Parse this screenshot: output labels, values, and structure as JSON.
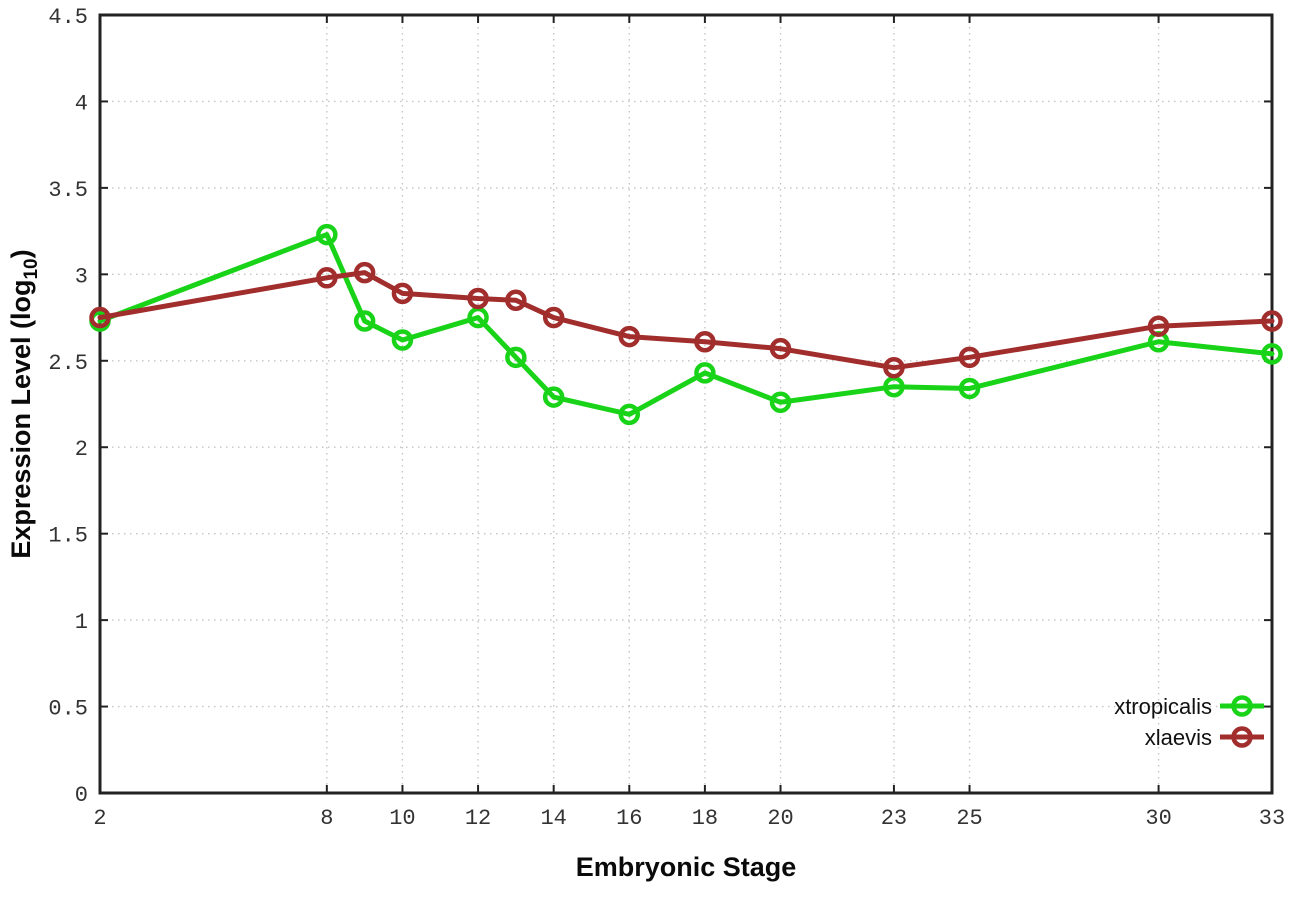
{
  "chart_data": {
    "type": "line",
    "title": "",
    "xlabel": "Embryonic Stage",
    "ylabel_main": "Expression Level (log",
    "ylabel_sub": "10",
    "ylabel_close": ")",
    "x": [
      2,
      8,
      9,
      10,
      12,
      13,
      14,
      16,
      18,
      20,
      23,
      25,
      30,
      33
    ],
    "series": [
      {
        "name": "xtropicalis",
        "color": "#19d319",
        "values": [
          2.73,
          3.23,
          2.73,
          2.62,
          2.75,
          2.52,
          2.29,
          2.19,
          2.43,
          2.26,
          2.35,
          2.34,
          2.61,
          2.54
        ]
      },
      {
        "name": "xlaevis",
        "color": "#a12d2d",
        "values": [
          2.75,
          2.98,
          3.01,
          2.89,
          2.86,
          2.85,
          2.75,
          2.64,
          2.61,
          2.57,
          2.46,
          2.52,
          2.7,
          2.73
        ]
      }
    ],
    "xlim": [
      2,
      33
    ],
    "ylim": [
      0,
      4.5
    ],
    "xticks": [
      2,
      8,
      10,
      12,
      14,
      16,
      18,
      20,
      23,
      25,
      30,
      33
    ],
    "xtick_labels": [
      "2",
      "8",
      "10",
      "12",
      "14",
      "16",
      "18",
      "20",
      "23",
      "25",
      "30",
      "33"
    ],
    "yticks": [
      0,
      0.5,
      1,
      1.5,
      2,
      2.5,
      3,
      3.5,
      4,
      4.5
    ],
    "ytick_labels": [
      "0",
      "0.5",
      "1",
      "1.5",
      "2",
      "2.5",
      "3",
      "3.5",
      "4",
      "4.5"
    ],
    "grid": "dotted-both-axes",
    "legend_position": "inside-bottom-right",
    "colors": {
      "grid": "#c4c4c4",
      "axis": "#222222",
      "tick_text": "#333333"
    }
  }
}
